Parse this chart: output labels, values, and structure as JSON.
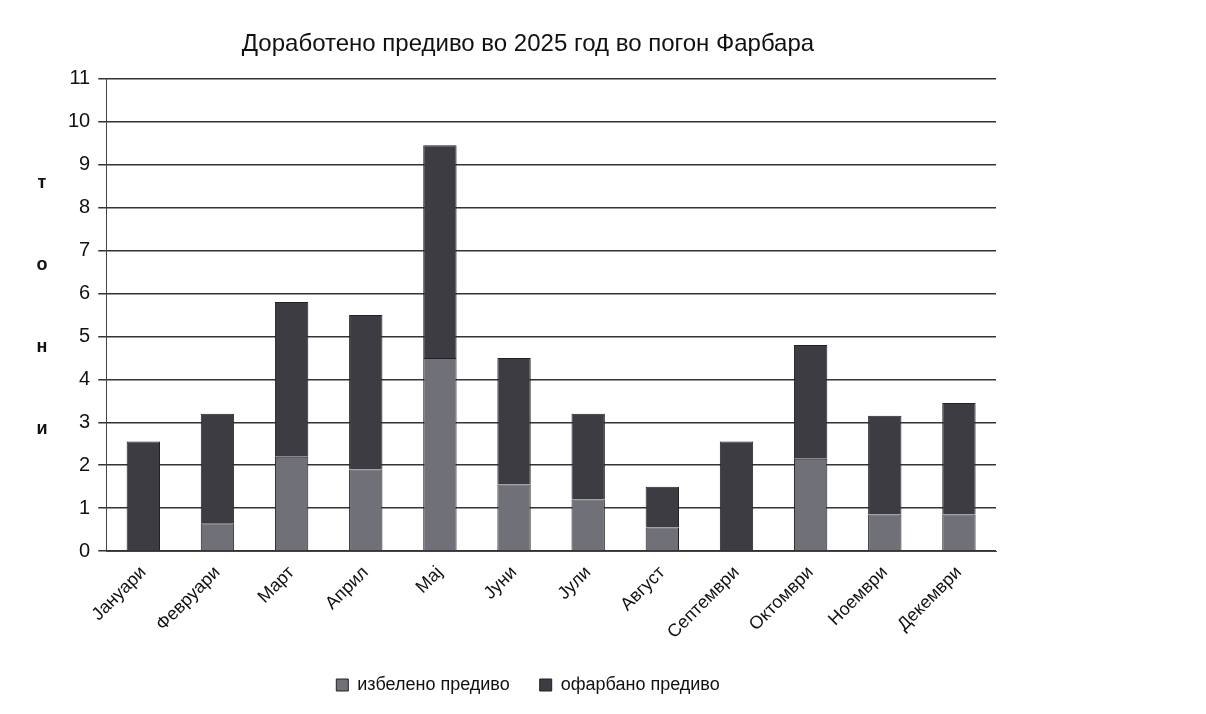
{
  "chart_data": {
    "type": "bar",
    "title": "Доработено предиво во 2025 год во погон Фарбара",
    "ylabel": "тони",
    "categories": [
      "Јануари",
      "Февруари",
      "Март",
      "Април",
      "Мај",
      "Јуни",
      "Јули",
      "Август",
      "Септември",
      "Октомври",
      "Ноември",
      "Декември"
    ],
    "series": [
      {
        "name": "избелено предиво",
        "color": "#707078",
        "values": [
          0,
          0.65,
          2.2,
          1.9,
          4.5,
          1.55,
          1.2,
          0.55,
          0,
          2.15,
          0.85,
          0.85
        ]
      },
      {
        "name": "офарбано предиво",
        "color": "#3c3c42",
        "values": [
          2.55,
          2.55,
          3.6,
          3.6,
          4.95,
          2.95,
          2.0,
          0.95,
          2.55,
          2.65,
          2.3,
          2.6
        ]
      }
    ],
    "stacked": true,
    "ylim": [
      0,
      11
    ],
    "yticks": [
      0,
      1,
      2,
      3,
      4,
      5,
      6,
      7,
      8,
      9,
      10,
      11
    ],
    "grid": "y",
    "legend": "bottom"
  }
}
